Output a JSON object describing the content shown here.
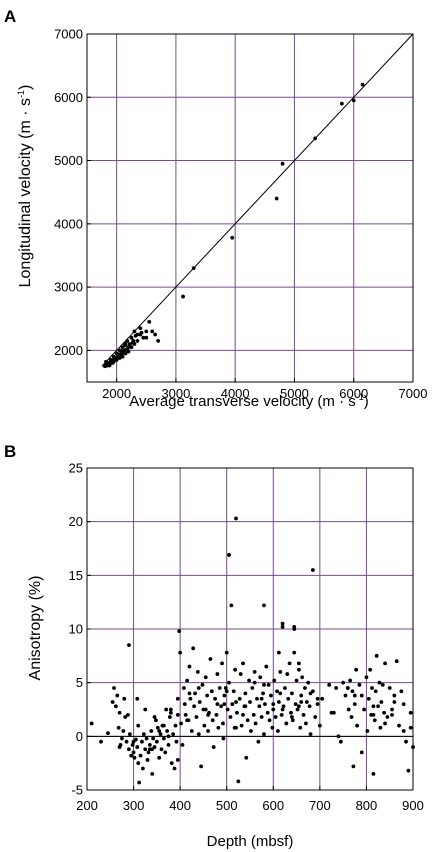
{
  "chart_data": [
    {
      "panel_label": "A",
      "type": "scatter",
      "xlabel": "Average transverse velocity",
      "xlabel_unit": "(m · s",
      "xlabel_unit_exp": "-1",
      "xlabel_unit_close": ")",
      "ylabel": "Longitudinal  velocity",
      "ylabel_unit": "(m · s",
      "ylabel_unit_exp": "-1",
      "ylabel_unit_close": ")",
      "xlim": [
        1500,
        7000
      ],
      "ylim": [
        1500,
        7000
      ],
      "xticks": [
        2000,
        3000,
        4000,
        5000,
        6000,
        7000
      ],
      "yticks": [
        2000,
        3000,
        4000,
        5000,
        6000,
        7000
      ],
      "grid": true,
      "grid_color": "#7a4a8a",
      "reference_line": {
        "type": "y=x",
        "from": [
          1750,
          1750
        ],
        "to": [
          7000,
          7000
        ]
      },
      "x": [
        6150,
        6000,
        5800,
        5350,
        4800,
        4700,
        3950,
        3300,
        3120,
        2700,
        2650,
        2600,
        2550,
        2500,
        2450,
        2400,
        2350,
        2300,
        2280,
        2250,
        2220,
        2200,
        2180,
        2150,
        2120,
        2100,
        2080,
        2050,
        2020,
        2000,
        1980,
        1950,
        1930,
        1900,
        1880,
        1860,
        1840,
        1820,
        1800,
        2300,
        2200,
        2150,
        2100,
        2050,
        2000,
        1950,
        1900,
        1880,
        1850,
        1820,
        2250,
        2350,
        2400,
        2500,
        2420,
        2180,
        2120,
        2060,
        1990,
        1960,
        1920,
        1870,
        1830,
        2270,
        2320,
        2140,
        2080,
        2020,
        1970,
        1910,
        1850,
        2210,
        2160,
        2110,
        2040,
        2000,
        1940,
        1890,
        1860,
        1810
      ],
      "y": [
        6200,
        5950,
        5900,
        5350,
        4950,
        4400,
        3780,
        3300,
        2850,
        2150,
        2250,
        2300,
        2450,
        2300,
        2200,
        2350,
        2250,
        2300,
        2150,
        2200,
        2100,
        2050,
        2150,
        2100,
        2000,
        2050,
        1950,
        2000,
        1900,
        1950,
        1850,
        1900,
        1800,
        1850,
        1780,
        1800,
        1760,
        1820,
        1750,
        2100,
        1980,
        1950,
        1900,
        1880,
        1850,
        1820,
        1800,
        1760,
        1790,
        1770,
        2050,
        2150,
        2250,
        2200,
        2280,
        2020,
        1960,
        1920,
        1880,
        1860,
        1830,
        1800,
        1780,
        2120,
        2230,
        2080,
        1990,
        1940,
        1870,
        1840,
        1790,
        2060,
        2010,
        1970,
        1910,
        1860,
        1820,
        1790,
        1770,
        1750
      ]
    },
    {
      "panel_label": "B",
      "type": "scatter",
      "xlabel": "Depth (mbsf)",
      "ylabel": "Anisotropy  (%)",
      "xlim": [
        200,
        900
      ],
      "ylim": [
        -5,
        25
      ],
      "xticks": [
        200,
        300,
        400,
        500,
        600,
        700,
        800,
        900
      ],
      "yticks": [
        -5,
        0,
        5,
        10,
        15,
        20,
        25
      ],
      "grid": true,
      "grid_color": "#7a4a8a",
      "zero_line": true,
      "x": [
        210,
        230,
        245,
        255,
        258,
        262,
        265,
        268,
        270,
        272,
        275,
        278,
        280,
        282,
        285,
        288,
        290,
        292,
        295,
        298,
        300,
        302,
        305,
        308,
        310,
        312,
        315,
        318,
        320,
        322,
        325,
        328,
        330,
        332,
        335,
        338,
        340,
        342,
        345,
        348,
        350,
        352,
        355,
        358,
        360,
        362,
        365,
        368,
        370,
        372,
        375,
        378,
        380,
        382,
        385,
        388,
        390,
        392,
        395,
        398,
        400,
        402,
        405,
        408,
        410,
        412,
        415,
        418,
        420,
        422,
        425,
        428,
        430,
        432,
        435,
        438,
        440,
        442,
        445,
        448,
        450,
        452,
        455,
        458,
        460,
        462,
        465,
        468,
        470,
        472,
        475,
        478,
        480,
        482,
        485,
        488,
        490,
        492,
        495,
        498,
        500,
        502,
        505,
        508,
        510,
        512,
        515,
        518,
        520,
        522,
        525,
        528,
        530,
        532,
        535,
        538,
        540,
        542,
        545,
        548,
        550,
        552,
        555,
        558,
        560,
        562,
        565,
        568,
        570,
        572,
        575,
        578,
        580,
        582,
        585,
        588,
        590,
        592,
        595,
        598,
        600,
        602,
        605,
        608,
        610,
        612,
        615,
        618,
        620,
        622,
        625,
        628,
        630,
        632,
        635,
        638,
        640,
        642,
        645,
        648,
        650,
        652,
        655,
        658,
        660,
        662,
        665,
        668,
        670,
        672,
        675,
        678,
        680,
        685,
        690,
        695,
        700,
        720,
        730,
        740,
        745,
        750,
        755,
        760,
        762,
        765,
        768,
        770,
        772,
        775,
        778,
        780,
        785,
        790,
        795,
        800,
        802,
        805,
        808,
        810,
        812,
        815,
        818,
        820,
        822,
        825,
        828,
        830,
        832,
        835,
        838,
        840,
        845,
        850,
        855,
        860,
        865,
        870,
        875,
        880,
        885,
        890,
        895,
        900,
        310,
        340,
        395,
        493,
        517,
        520,
        505,
        580,
        612,
        620,
        645,
        645,
        685,
        655,
        290,
        308,
        325,
        345,
        355,
        365,
        380,
        395,
        420,
        440,
        460,
        480,
        500,
        520,
        540,
        560,
        580,
        600,
        620,
        640,
        660,
        680,
        705,
        725,
        760,
        790,
        815,
        840,
        860,
        880,
        270,
        300,
        335,
        375,
        415,
        455,
        495,
        535,
        575,
        615,
        655,
        695,
        735,
        775,
        815,
        855,
        895
      ],
      "y": [
        1.2,
        -0.5,
        0.3,
        3.2,
        4.5,
        2.8,
        3.8,
        0.8,
        2.2,
        -0.8,
        -0.2,
        0.5,
        3.5,
        1.8,
        -0.5,
        2.0,
        -1.2,
        0.2,
        -1.8,
        -0.8,
        -1.5,
        -2.0,
        -0.3,
        -1.0,
        -2.5,
        -4.3,
        -1.8,
        -0.5,
        -3.0,
        0.2,
        -1.2,
        -0.2,
        -2.2,
        -1.5,
        -0.8,
        0.5,
        -3.5,
        -0.2,
        -1.0,
        1.5,
        -0.5,
        0.8,
        -2.0,
        0.2,
        -1.2,
        1.0,
        -0.2,
        -1.5,
        2.5,
        0.5,
        -0.8,
        1.8,
        2.2,
        -2.5,
        0.2,
        -3.0,
        1.0,
        -0.5,
        2.0,
        9.8,
        7.8,
        1.2,
        -0.8,
        4.5,
        3.0,
        2.0,
        5.2,
        1.5,
        6.5,
        3.5,
        0.5,
        8.2,
        2.8,
        4.0,
        1.8,
        6.0,
        0.2,
        3.2,
        -2.8,
        4.8,
        2.5,
        1.0,
        5.5,
        3.8,
        0.5,
        2.2,
        7.2,
        4.2,
        1.5,
        -1.0,
        3.5,
        2.0,
        5.8,
        0.8,
        4.5,
        2.8,
        6.8,
        1.2,
        3.8,
        4.5,
        7.8,
        2.5,
        5.0,
        1.8,
        12.2,
        3.0,
        4.2,
        6.2,
        0.8,
        2.2,
        -4.2,
        3.5,
        5.8,
        1.0,
        6.8,
        2.8,
        4.0,
        -2.0,
        1.5,
        5.2,
        3.2,
        0.5,
        4.5,
        2.0,
        6.0,
        1.2,
        3.5,
        -0.5,
        2.8,
        5.5,
        1.8,
        4.0,
        0.2,
        3.0,
        6.5,
        2.2,
        4.8,
        1.5,
        3.8,
        0.8,
        2.5,
        5.2,
        1.8,
        4.2,
        0.5,
        3.2,
        6.0,
        2.0,
        10.2,
        2.8,
        4.5,
        1.2,
        5.8,
        3.5,
        6.8,
        2.2,
        4.0,
        1.5,
        7.8,
        3.0,
        5.2,
        2.5,
        6.2,
        0.8,
        3.8,
        5.5,
        2.0,
        4.5,
        1.2,
        3.2,
        5.0,
        2.8,
        0.2,
        4.2,
        1.8,
        3.5,
        1.0,
        4.8,
        2.2,
        0.0,
        -0.5,
        5.0,
        3.8,
        4.5,
        2.5,
        5.2,
        1.8,
        4.2,
        -2.8,
        3.0,
        6.2,
        1.0,
        4.8,
        -1.5,
        2.5,
        5.5,
        0.5,
        3.5,
        6.2,
        2.0,
        4.5,
        -3.5,
        1.5,
        4.2,
        7.5,
        2.8,
        5.0,
        0.8,
        3.2,
        4.8,
        2.2,
        6.8,
        1.8,
        4.5,
        2.0,
        3.8,
        7.0,
        1.0,
        4.2,
        3.0,
        -0.5,
        -3.2,
        2.2,
        -1.0,
        1.0,
        -1.2,
        -2.2,
        -0.2,
        0.8,
        20.3,
        16.9,
        12.2,
        7.8,
        10.5,
        10.2,
        10.0,
        15.5,
        6.8,
        8.5,
        3.5,
        2.5,
        1.8,
        0.5,
        1.0,
        2.5,
        3.5,
        4.0,
        4.5,
        2.0,
        3.0,
        4.2,
        3.2,
        2.8,
        5.0,
        4.8,
        3.0,
        2.5,
        1.8,
        3.2,
        4.0,
        3.5,
        2.2,
        4.5,
        3.8,
        2.8,
        1.2,
        3.2,
        0.5,
        -1.0,
        -0.5,
        -1.2,
        0.0,
        1.5,
        2.5,
        3.0,
        2.0,
        3.5,
        4.0,
        2.8,
        3.0,
        4.5,
        3.8,
        2.0,
        2.5,
        0.8
      ]
    }
  ]
}
